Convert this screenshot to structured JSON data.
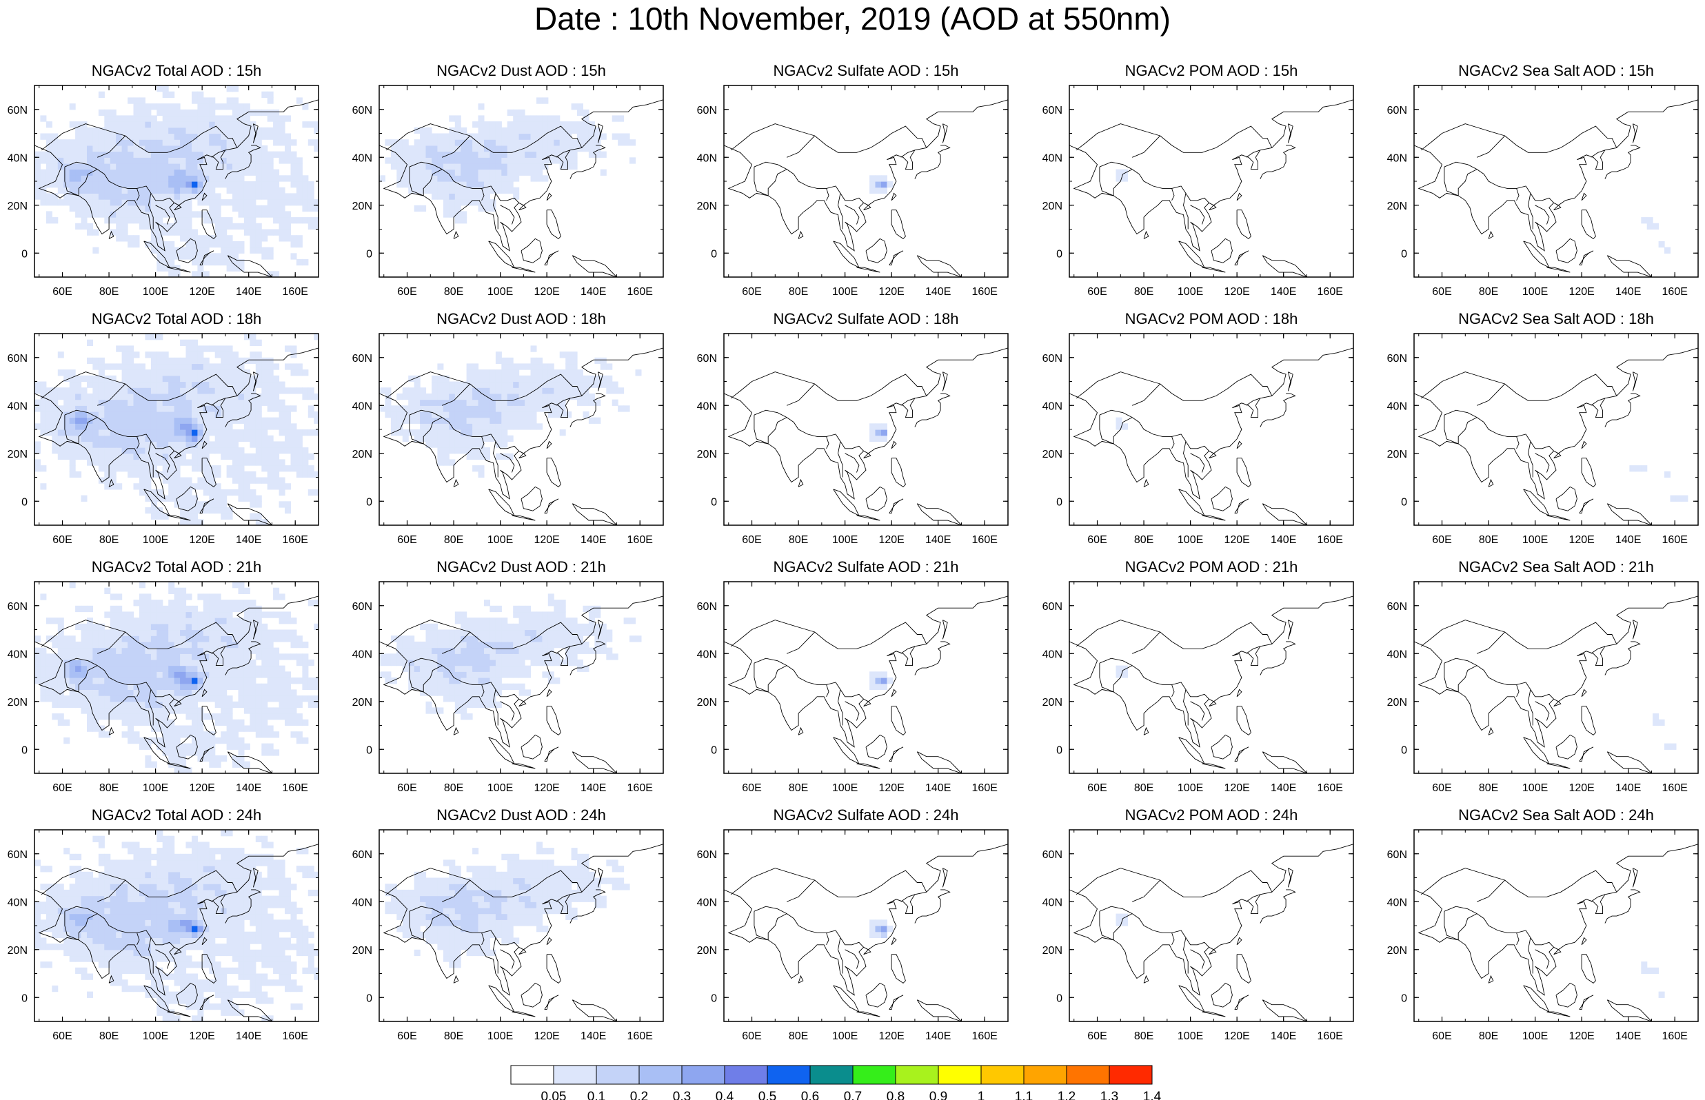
{
  "title": "Date : 10th November, 2019 (AOD at 550nm)",
  "panel_titles": [
    [
      "NGACv2 Total AOD : 15h",
      "NGACv2 Dust AOD : 15h",
      "NGACv2 Sulfate AOD : 15h",
      "NGACv2 POM AOD : 15h",
      "NGACv2 Sea Salt AOD : 15h"
    ],
    [
      "NGACv2 Total AOD : 18h",
      "NGACv2 Dust AOD : 18h",
      "NGACv2 Sulfate AOD : 18h",
      "NGACv2 POM AOD : 18h",
      "NGACv2 Sea Salt AOD : 18h"
    ],
    [
      "NGACv2 Total AOD : 21h",
      "NGACv2 Dust AOD : 21h",
      "NGACv2 Sulfate AOD : 21h",
      "NGACv2 POM AOD : 21h",
      "NGACv2 Sea Salt AOD : 21h"
    ],
    [
      "NGACv2 Total AOD : 24h",
      "NGACv2 Dust AOD : 24h",
      "NGACv2 Sulfate AOD : 24h",
      "NGACv2 POM AOD : 24h",
      "NGACv2 Sea Salt  AOD : 24h"
    ]
  ],
  "axes": {
    "lon_labels": [
      "60E",
      "80E",
      "100E",
      "120E",
      "140E",
      "160E"
    ],
    "lon_values": [
      60,
      80,
      100,
      120,
      140,
      160
    ],
    "lat_labels": [
      "60N",
      "40N",
      "20N",
      "0"
    ],
    "lat_values": [
      60,
      40,
      20,
      0
    ],
    "lon_range": [
      48,
      170
    ],
    "lat_range": [
      -10,
      70
    ]
  },
  "colorbar": {
    "labels": [
      "0.05",
      "0.1",
      "0.2",
      "0.3",
      "0.4",
      "0.5",
      "0.6",
      "0.7",
      "0.8",
      "0.9",
      "1",
      "1.1",
      "1.2",
      "1.3",
      "1.4"
    ],
    "colors": [
      "#ffffff",
      "#dde6fb",
      "#c4d3f8",
      "#a9bff5",
      "#8ea6f0",
      "#6f7ee8",
      "#0f63f0",
      "#0a8d8d",
      "#35ee1a",
      "#a8f21d",
      "#ffff00",
      "#ffc800",
      "#ffa400",
      "#ff7400",
      "#ff2a00"
    ]
  }
}
